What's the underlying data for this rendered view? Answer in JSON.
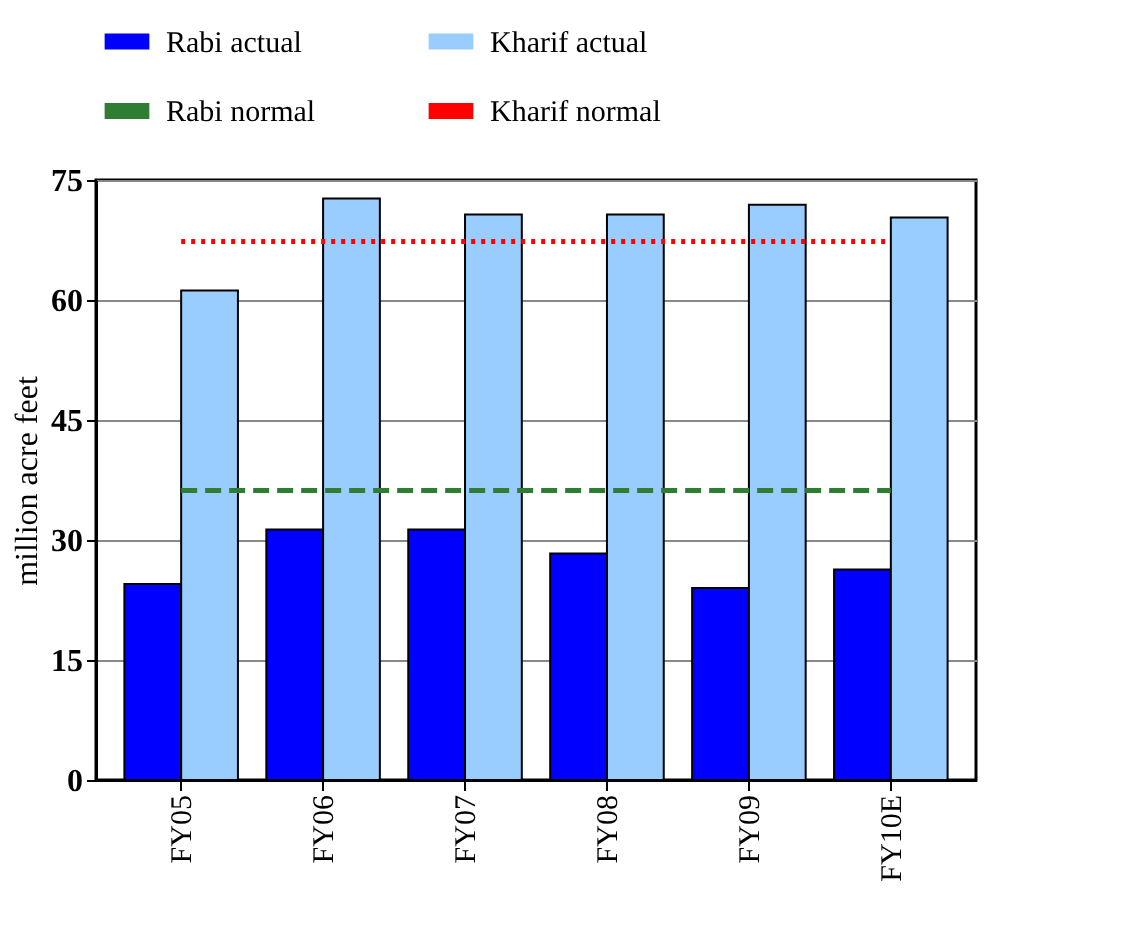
{
  "chart_data": {
    "type": "bar",
    "ylabel": "million acre feet",
    "categories": [
      "FY05",
      "FY06",
      "FY07",
      "FY08",
      "FY09",
      "FY10E"
    ],
    "series": [
      {
        "name": "Rabi actual",
        "color": "#0000ff",
        "values": [
          24.5,
          31.3,
          31.3,
          28.3,
          24.0,
          26.3
        ]
      },
      {
        "name": "Kharif actual",
        "color": "#99ccff",
        "values": [
          61.2,
          72.7,
          70.7,
          70.7,
          71.9,
          70.3
        ]
      },
      {
        "name": "Rabi normal",
        "type": "line",
        "line_style": "dashed",
        "color": "#2e7d32",
        "values": [
          36.2,
          36.2,
          36.2,
          36.2,
          36.2,
          36.2
        ]
      },
      {
        "name": "Kharif normal",
        "type": "line",
        "line_style": "dotted",
        "color": "#ff0000",
        "values": [
          67.3,
          67.3,
          67.3,
          67.3,
          67.3,
          67.3
        ]
      }
    ],
    "ylim": [
      0,
      75
    ],
    "yticks": [
      0,
      15,
      30,
      45,
      60,
      75
    ],
    "grid": "y",
    "legend": "top"
  }
}
